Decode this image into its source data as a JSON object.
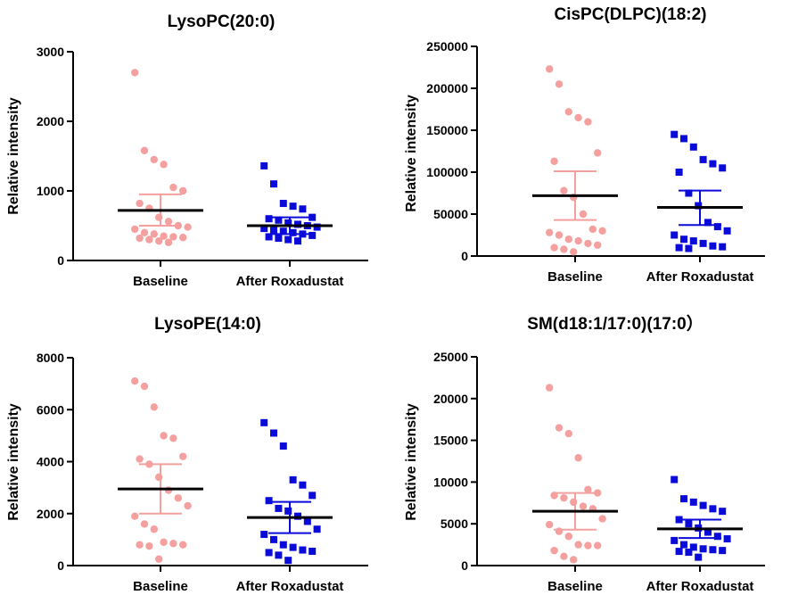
{
  "figure": {
    "colors": {
      "baseline": "#f4a09f",
      "after": "#0a0ad9",
      "axis": "#000000",
      "mean": "#000000"
    }
  },
  "chart_data": [
    {
      "type": "scatter",
      "title": "LysoPC(20:0)",
      "ylabel": "Relative intensity",
      "categories": [
        "Baseline",
        "After Roxadustat"
      ],
      "ylim": [
        0,
        3000
      ],
      "yticks": [
        0,
        1000,
        2000,
        3000
      ],
      "yticklabels": [
        "0",
        "1000",
        "2000",
        "3000"
      ],
      "series": [
        {
          "name": "Baseline",
          "marker": "circle",
          "values": [
            2700,
            1580,
            1450,
            1380,
            1050,
            1000,
            820,
            750,
            620,
            560,
            500,
            480,
            450,
            400,
            380,
            350,
            340,
            330,
            320,
            300,
            280,
            260
          ],
          "mean": 720,
          "sem_low": 500,
          "sem_high": 950
        },
        {
          "name": "After Roxadustat",
          "marker": "square",
          "values": [
            1360,
            1100,
            820,
            780,
            740,
            620,
            600,
            580,
            540,
            520,
            500,
            480,
            460,
            440,
            420,
            400,
            380,
            360,
            340,
            320,
            300,
            280
          ],
          "mean": 500,
          "sem_low": 380,
          "sem_high": 620
        }
      ]
    },
    {
      "type": "scatter",
      "title": "CisPC(DLPC)(18:2)",
      "ylabel": "Relative intensity",
      "categories": [
        "Baseline",
        "After Roxadustat"
      ],
      "ylim": [
        0,
        250000
      ],
      "yticks": [
        0,
        50000,
        100000,
        150000,
        200000,
        250000
      ],
      "yticklabels": [
        "0",
        "50000",
        "100000",
        "150000",
        "200000",
        "250000"
      ],
      "series": [
        {
          "name": "Baseline",
          "marker": "circle",
          "values": [
            223000,
            205000,
            172000,
            165000,
            160000,
            123000,
            113000,
            78000,
            70000,
            50000,
            32000,
            30000,
            28000,
            25000,
            20000,
            18000,
            15000,
            13000,
            10000,
            8000,
            5000
          ],
          "mean": 72000,
          "sem_low": 43000,
          "sem_high": 101000
        },
        {
          "name": "After Roxadustat",
          "marker": "square",
          "values": [
            145000,
            140000,
            130000,
            115000,
            110000,
            105000,
            100000,
            75000,
            60000,
            40000,
            35000,
            30000,
            25000,
            20000,
            18000,
            15000,
            12000,
            11000,
            10000,
            9000
          ],
          "mean": 58000,
          "sem_low": 37000,
          "sem_high": 78000
        }
      ]
    },
    {
      "type": "scatter",
      "title": "LysoPE(14:0)",
      "ylabel": "Relative intensity",
      "categories": [
        "Baseline",
        "After Roxadustat"
      ],
      "ylim": [
        0,
        8000
      ],
      "yticks": [
        0,
        2000,
        4000,
        6000,
        8000
      ],
      "yticklabels": [
        "0",
        "2000",
        "4000",
        "6000",
        "8000"
      ],
      "series": [
        {
          "name": "Baseline",
          "marker": "circle",
          "values": [
            7100,
            6900,
            6100,
            5000,
            4900,
            4200,
            4100,
            3900,
            3400,
            2900,
            2600,
            2300,
            1900,
            1600,
            1400,
            900,
            850,
            800,
            800,
            750,
            250
          ],
          "mean": 2950,
          "sem_low": 2000,
          "sem_high": 3900
        },
        {
          "name": "After Roxadustat",
          "marker": "square",
          "values": [
            5500,
            5100,
            4600,
            3300,
            3100,
            2700,
            2500,
            2200,
            2100,
            1900,
            1700,
            1400,
            1200,
            1000,
            800,
            700,
            600,
            550,
            500,
            400,
            200
          ],
          "mean": 1850,
          "sem_low": 1250,
          "sem_high": 2450
        }
      ]
    },
    {
      "type": "scatter",
      "title": "SM(d18:1/17:0)(17:0）",
      "ylabel": "Relative intensity",
      "categories": [
        "Baseline",
        "After Roxadustat"
      ],
      "ylim": [
        0,
        25000
      ],
      "yticks": [
        0,
        5000,
        10000,
        15000,
        20000,
        25000
      ],
      "yticklabels": [
        "0",
        "5000",
        "10000",
        "15000",
        "20000",
        "25000"
      ],
      "series": [
        {
          "name": "Baseline",
          "marker": "circle",
          "values": [
            21300,
            16500,
            15800,
            12900,
            9100,
            8700,
            8400,
            8100,
            7600,
            7100,
            6800,
            5600,
            4900,
            4100,
            3500,
            2500,
            2400,
            2400,
            1800,
            1100,
            700
          ],
          "mean": 6500,
          "sem_low": 4300,
          "sem_high": 8700
        },
        {
          "name": "After Roxadustat",
          "marker": "square",
          "values": [
            10300,
            8000,
            7600,
            7200,
            6800,
            6500,
            5500,
            5000,
            4500,
            4000,
            3500,
            3200,
            3000,
            2500,
            2200,
            2000,
            1900,
            1800,
            1700,
            1600,
            1000
          ],
          "mean": 4400,
          "sem_low": 3300,
          "sem_high": 5500
        }
      ]
    }
  ]
}
